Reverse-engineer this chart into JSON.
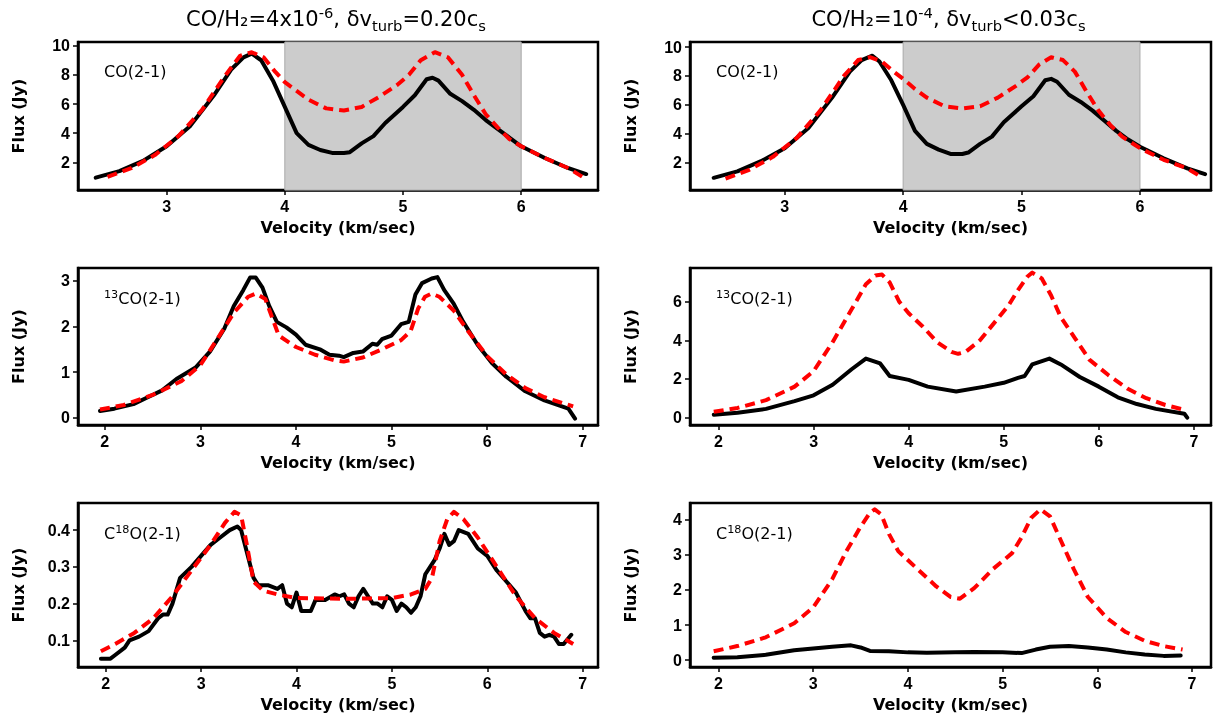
{
  "chart_data": [
    {
      "type": "line",
      "title": "CO/H₂=4x10$^{-6}$, δv$_{turb}$=0.20c$_{s}$",
      "xlabel": "Velocity (km/sec)",
      "ylabel": "Flux (Jy)",
      "annotations": [
        "CO(2-1)"
      ],
      "xlim": [
        2.25,
        6.65
      ],
      "xticks": [
        3,
        4,
        5,
        6
      ],
      "ylim": [
        0.1,
        10.25
      ],
      "yticks": [
        2,
        4,
        6,
        8,
        10
      ],
      "bands": [
        {
          "axis": "x",
          "from": 4,
          "to": 6,
          "color": "#cccccc"
        }
      ],
      "series": [
        {
          "color": "#000000",
          "line_style": "solid",
          "x": [
            2.4,
            2.6,
            2.8,
            3.0,
            3.2,
            3.4,
            3.55,
            3.65,
            3.72,
            3.8,
            3.9,
            4.0,
            4.1,
            4.2,
            4.3,
            4.4,
            4.5,
            4.55,
            4.65,
            4.75,
            4.85,
            5.0,
            5.1,
            5.2,
            5.25,
            5.3,
            5.4,
            5.5,
            5.6,
            5.7,
            5.8,
            5.9,
            6.0,
            6.2,
            6.4,
            6.55
          ],
          "values": [
            0.95,
            1.4,
            2.1,
            3.1,
            4.5,
            6.6,
            8.4,
            9.2,
            9.45,
            9.0,
            7.6,
            5.8,
            4.0,
            3.2,
            2.85,
            2.65,
            2.65,
            2.7,
            3.3,
            3.8,
            4.7,
            5.8,
            6.6,
            7.7,
            7.8,
            7.6,
            6.7,
            6.2,
            5.6,
            4.9,
            4.3,
            3.7,
            3.1,
            2.3,
            1.6,
            1.2
          ]
        },
        {
          "color": "#ff0000",
          "line_style": "dashed",
          "x": [
            2.5,
            2.7,
            2.9,
            3.1,
            3.3,
            3.5,
            3.62,
            3.72,
            3.82,
            3.92,
            4.0,
            4.1,
            4.2,
            4.35,
            4.5,
            4.65,
            4.8,
            4.95,
            5.05,
            5.15,
            5.27,
            5.38,
            5.5,
            5.6,
            5.7,
            5.8,
            5.9,
            6.0,
            6.2,
            6.4,
            6.52
          ],
          "values": [
            1.0,
            1.6,
            2.5,
            3.8,
            5.6,
            8.0,
            9.3,
            9.55,
            9.2,
            8.2,
            7.5,
            6.9,
            6.3,
            5.7,
            5.55,
            5.8,
            6.5,
            7.3,
            8.0,
            9.0,
            9.55,
            9.2,
            8.0,
            6.6,
            5.3,
            4.4,
            3.6,
            3.1,
            2.3,
            1.6,
            1.0
          ]
        }
      ]
    },
    {
      "type": "line",
      "title": "CO/H₂=10$^{-4}$, δv$_{turb}$<0.03c$_{s}$",
      "xlabel": "Velocity (km/sec)",
      "ylabel": "Flux (Jy)",
      "annotations": [
        "CO(2-1)"
      ],
      "xlim": [
        2.2,
        6.6
      ],
      "xticks": [
        3,
        4,
        5,
        6
      ],
      "ylim": [
        0.1,
        10.35
      ],
      "yticks": [
        2,
        4,
        6,
        8,
        10
      ],
      "bands": [
        {
          "axis": "x",
          "from": 4,
          "to": 6,
          "color": "#cccccc"
        }
      ],
      "series": [
        {
          "color": "#000000",
          "line_style": "solid",
          "x": [
            2.4,
            2.6,
            2.8,
            3.0,
            3.2,
            3.4,
            3.55,
            3.65,
            3.74,
            3.8,
            3.9,
            4.0,
            4.1,
            4.2,
            4.3,
            4.4,
            4.5,
            4.55,
            4.65,
            4.75,
            4.85,
            5.0,
            5.1,
            5.2,
            5.25,
            5.3,
            5.4,
            5.5,
            5.6,
            5.7,
            5.8,
            5.9,
            6.0,
            6.2,
            6.4,
            6.55
          ],
          "values": [
            0.95,
            1.4,
            2.1,
            3.0,
            4.4,
            6.5,
            8.3,
            9.1,
            9.4,
            9.0,
            7.7,
            6.0,
            4.2,
            3.3,
            2.9,
            2.6,
            2.6,
            2.7,
            3.3,
            3.8,
            4.8,
            5.9,
            6.6,
            7.7,
            7.8,
            7.6,
            6.7,
            6.2,
            5.6,
            4.9,
            4.2,
            3.6,
            3.1,
            2.3,
            1.6,
            1.2
          ]
        },
        {
          "color": "#ff0000",
          "line_style": "dashed",
          "x": [
            2.5,
            2.7,
            2.9,
            3.1,
            3.3,
            3.5,
            3.62,
            3.72,
            3.82,
            3.92,
            4.0,
            4.1,
            4.2,
            4.35,
            4.5,
            4.65,
            4.8,
            4.95,
            5.05,
            5.15,
            5.25,
            5.35,
            5.45,
            5.55,
            5.65,
            5.75,
            5.85,
            6.0,
            6.2,
            6.4,
            6.52
          ],
          "values": [
            0.9,
            1.5,
            2.4,
            3.7,
            5.6,
            8.0,
            9.1,
            9.3,
            9.0,
            8.3,
            7.8,
            7.1,
            6.5,
            5.9,
            5.75,
            5.9,
            6.5,
            7.3,
            7.9,
            8.8,
            9.3,
            9.1,
            8.3,
            6.9,
            5.6,
            4.6,
            3.8,
            3.0,
            2.2,
            1.6,
            1.0
          ]
        }
      ]
    },
    {
      "type": "line",
      "xlabel": "Velocity (km/sec)",
      "ylabel": "Flux (Jy)",
      "annotations": [
        "$^{13}$CO(2-1)"
      ],
      "xlim": [
        1.72,
        7.16
      ],
      "xticks": [
        2,
        3,
        4,
        5,
        6,
        7
      ],
      "ylim": [
        -0.16,
        3.28
      ],
      "yticks": [
        0,
        1,
        2,
        3
      ],
      "series": [
        {
          "color": "#000000",
          "line_style": "solid",
          "x": [
            1.95,
            2.1,
            2.3,
            2.45,
            2.6,
            2.75,
            2.95,
            3.1,
            3.25,
            3.35,
            3.45,
            3.52,
            3.58,
            3.65,
            3.72,
            3.8,
            3.9,
            4.0,
            4.1,
            4.25,
            4.35,
            4.45,
            4.5,
            4.6,
            4.7,
            4.8,
            4.85,
            4.9,
            5.0,
            5.1,
            5.18,
            5.25,
            5.32,
            5.42,
            5.48,
            5.55,
            5.65,
            5.75,
            5.9,
            6.05,
            6.2,
            6.4,
            6.6,
            6.85,
            6.92
          ],
          "values": [
            0.15,
            0.2,
            0.3,
            0.45,
            0.6,
            0.85,
            1.1,
            1.45,
            1.95,
            2.45,
            2.8,
            3.07,
            3.07,
            2.85,
            2.45,
            2.1,
            1.98,
            1.82,
            1.6,
            1.5,
            1.38,
            1.36,
            1.33,
            1.42,
            1.45,
            1.62,
            1.6,
            1.72,
            1.8,
            2.05,
            2.1,
            2.7,
            2.95,
            3.05,
            3.08,
            2.8,
            2.5,
            2.1,
            1.6,
            1.2,
            0.9,
            0.58,
            0.38,
            0.2,
            -0.02
          ]
        },
        {
          "color": "#ff0000",
          "line_style": "dashed",
          "x": [
            1.95,
            2.2,
            2.5,
            2.8,
            3.0,
            3.2,
            3.35,
            3.5,
            3.58,
            3.68,
            3.75,
            3.82,
            4.0,
            4.2,
            4.4,
            4.5,
            4.7,
            4.9,
            5.1,
            5.2,
            5.28,
            5.35,
            5.42,
            5.5,
            5.65,
            5.8,
            6.0,
            6.2,
            6.4,
            6.6,
            6.9
          ],
          "values": [
            0.18,
            0.28,
            0.5,
            0.8,
            1.15,
            1.8,
            2.3,
            2.65,
            2.72,
            2.6,
            2.2,
            1.8,
            1.55,
            1.38,
            1.26,
            1.23,
            1.32,
            1.5,
            1.7,
            1.9,
            2.4,
            2.65,
            2.72,
            2.65,
            2.35,
            1.9,
            1.35,
            0.95,
            0.65,
            0.45,
            0.25
          ]
        }
      ]
    },
    {
      "type": "line",
      "xlabel": "Velocity (km/sec)",
      "ylabel": "Flux (Jy)",
      "annotations": [
        "$^{13}$CO(2-1)"
      ],
      "xlim": [
        1.7,
        7.18
      ],
      "xticks": [
        2,
        3,
        4,
        5,
        6,
        7
      ],
      "ylim": [
        -0.39,
        7.74
      ],
      "yticks": [
        0,
        2,
        4,
        6
      ],
      "series": [
        {
          "color": "#000000",
          "line_style": "solid",
          "x": [
            1.95,
            2.2,
            2.5,
            2.8,
            3.0,
            3.2,
            3.4,
            3.55,
            3.7,
            3.8,
            4.0,
            4.2,
            4.5,
            4.8,
            5.0,
            5.15,
            5.22,
            5.3,
            5.48,
            5.6,
            5.8,
            6.0,
            6.2,
            6.4,
            6.6,
            6.9,
            6.93
          ],
          "values": [
            0.15,
            0.25,
            0.45,
            0.85,
            1.15,
            1.7,
            2.5,
            3.05,
            2.8,
            2.15,
            1.95,
            1.6,
            1.35,
            1.6,
            1.8,
            2.05,
            2.15,
            2.75,
            3.05,
            2.75,
            2.1,
            1.6,
            1.05,
            0.7,
            0.45,
            0.2,
            0.0
          ]
        },
        {
          "color": "#ff0000",
          "line_style": "dashed",
          "x": [
            1.95,
            2.2,
            2.5,
            2.8,
            3.0,
            3.2,
            3.4,
            3.55,
            3.65,
            3.72,
            3.8,
            3.9,
            4.0,
            4.15,
            4.3,
            4.45,
            4.52,
            4.6,
            4.75,
            4.9,
            5.05,
            5.15,
            5.25,
            5.3,
            5.4,
            5.5,
            5.6,
            5.75,
            5.9,
            6.1,
            6.3,
            6.5,
            6.7,
            6.9
          ],
          "values": [
            0.3,
            0.5,
            0.9,
            1.6,
            2.4,
            3.9,
            5.6,
            6.9,
            7.35,
            7.4,
            7.0,
            6.0,
            5.4,
            4.7,
            3.9,
            3.4,
            3.3,
            3.4,
            4.0,
            4.9,
            5.8,
            6.6,
            7.3,
            7.5,
            7.2,
            6.3,
            5.2,
            4.1,
            3.0,
            2.2,
            1.5,
            1.0,
            0.65,
            0.4
          ]
        }
      ]
    },
    {
      "type": "line",
      "xlabel": "Velocity (km/sec)",
      "ylabel": "Flux (Jy)",
      "annotations": [
        "C$^{18}$O(2-1)"
      ],
      "xlim": [
        1.71,
        7.16
      ],
      "xticks": [
        2,
        3,
        4,
        5,
        6,
        7
      ],
      "ylim": [
        0.027,
        0.474
      ],
      "yticks": [
        0.1,
        0.2,
        0.3,
        0.4
      ],
      "series": [
        {
          "color": "#000000",
          "line_style": "solid",
          "x": [
            1.95,
            2.05,
            2.1,
            2.2,
            2.25,
            2.35,
            2.45,
            2.55,
            2.6,
            2.65,
            2.7,
            2.78,
            2.9,
            3.0,
            3.1,
            3.2,
            3.3,
            3.38,
            3.42,
            3.48,
            3.55,
            3.6,
            3.7,
            3.8,
            3.85,
            3.9,
            3.95,
            4.0,
            4.05,
            4.15,
            4.2,
            4.3,
            4.4,
            4.45,
            4.5,
            4.55,
            4.6,
            4.65,
            4.7,
            4.75,
            4.8,
            4.85,
            4.9,
            4.95,
            5.0,
            5.05,
            5.1,
            5.15,
            5.2,
            5.25,
            5.3,
            5.35,
            5.45,
            5.5,
            5.55,
            5.6,
            5.65,
            5.7,
            5.8,
            5.9,
            6.0,
            6.1,
            6.2,
            6.3,
            6.4,
            6.45,
            6.5,
            6.55,
            6.6,
            6.65,
            6.7,
            6.75,
            6.8,
            6.88
          ],
          "values": [
            0.05,
            0.05,
            0.06,
            0.08,
            0.1,
            0.11,
            0.125,
            0.16,
            0.17,
            0.17,
            0.2,
            0.27,
            0.3,
            0.33,
            0.36,
            0.38,
            0.4,
            0.41,
            0.4,
            0.34,
            0.27,
            0.25,
            0.25,
            0.24,
            0.25,
            0.2,
            0.19,
            0.23,
            0.18,
            0.18,
            0.21,
            0.21,
            0.225,
            0.22,
            0.225,
            0.2,
            0.19,
            0.22,
            0.24,
            0.22,
            0.2,
            0.2,
            0.19,
            0.22,
            0.21,
            0.18,
            0.2,
            0.19,
            0.175,
            0.19,
            0.22,
            0.28,
            0.32,
            0.35,
            0.39,
            0.36,
            0.37,
            0.4,
            0.39,
            0.35,
            0.33,
            0.29,
            0.26,
            0.23,
            0.18,
            0.16,
            0.16,
            0.12,
            0.11,
            0.115,
            0.11,
            0.09,
            0.09,
            0.115
          ]
        },
        {
          "color": "#ff0000",
          "line_style": "dashed",
          "x": [
            1.95,
            2.1,
            2.3,
            2.5,
            2.7,
            2.9,
            3.1,
            3.25,
            3.35,
            3.42,
            3.48,
            3.55,
            3.65,
            3.8,
            4.0,
            4.5,
            5.0,
            5.2,
            5.35,
            5.42,
            5.5,
            5.58,
            5.65,
            5.75,
            5.9,
            6.1,
            6.3,
            6.5,
            6.7,
            6.9
          ],
          "values": [
            0.07,
            0.09,
            0.12,
            0.16,
            0.22,
            0.29,
            0.36,
            0.42,
            0.45,
            0.44,
            0.36,
            0.26,
            0.235,
            0.225,
            0.215,
            0.213,
            0.215,
            0.225,
            0.24,
            0.27,
            0.37,
            0.43,
            0.45,
            0.43,
            0.38,
            0.3,
            0.22,
            0.16,
            0.12,
            0.09
          ]
        }
      ]
    },
    {
      "type": "line",
      "xlabel": "Velocity (km/sec)",
      "ylabel": "Flux (Jy)",
      "annotations": [
        "C$^{18}$O(2-1)"
      ],
      "xlim": [
        1.7,
        7.2
      ],
      "xticks": [
        2,
        3,
        4,
        5,
        6,
        7
      ],
      "ylim": [
        -0.2,
        4.48
      ],
      "yticks": [
        0,
        1,
        2,
        3,
        4
      ],
      "series": [
        {
          "color": "#000000",
          "line_style": "solid",
          "x": [
            1.95,
            2.2,
            2.5,
            2.8,
            3.0,
            3.2,
            3.4,
            3.5,
            3.6,
            3.8,
            4.0,
            4.2,
            4.5,
            4.7,
            5.0,
            5.2,
            5.35,
            5.5,
            5.7,
            5.9,
            6.1,
            6.3,
            6.5,
            6.7,
            6.88
          ],
          "values": [
            0.07,
            0.08,
            0.15,
            0.28,
            0.33,
            0.38,
            0.42,
            0.36,
            0.26,
            0.25,
            0.22,
            0.21,
            0.22,
            0.23,
            0.22,
            0.2,
            0.3,
            0.38,
            0.4,
            0.36,
            0.3,
            0.22,
            0.16,
            0.12,
            0.13
          ]
        },
        {
          "color": "#ff0000",
          "line_style": "dashed",
          "x": [
            1.95,
            2.2,
            2.5,
            2.8,
            3.0,
            3.2,
            3.35,
            3.5,
            3.6,
            3.65,
            3.72,
            3.8,
            3.9,
            4.1,
            4.3,
            4.45,
            4.55,
            4.7,
            4.9,
            5.1,
            5.2,
            5.3,
            5.4,
            5.5,
            5.6,
            5.75,
            5.9,
            6.1,
            6.3,
            6.5,
            6.7,
            6.9
          ],
          "values": [
            0.25,
            0.4,
            0.65,
            1.05,
            1.5,
            2.3,
            3.1,
            3.8,
            4.2,
            4.3,
            4.15,
            3.6,
            3.1,
            2.6,
            2.1,
            1.8,
            1.75,
            2.05,
            2.6,
            3.05,
            3.5,
            4.05,
            4.3,
            4.1,
            3.5,
            2.6,
            1.8,
            1.2,
            0.8,
            0.55,
            0.4,
            0.3
          ]
        }
      ]
    }
  ]
}
